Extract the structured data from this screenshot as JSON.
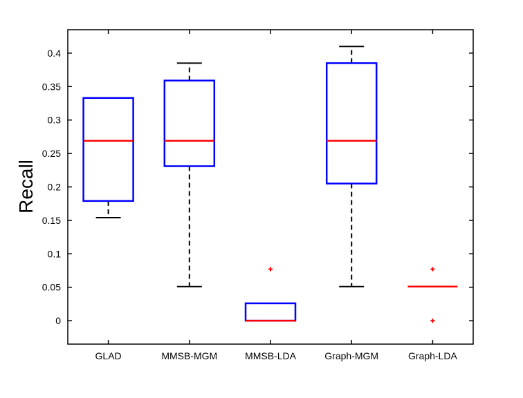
{
  "chart_data": {
    "type": "boxplot",
    "title": "",
    "xlabel": "",
    "ylabel": "Recall",
    "ylim": [
      -0.035,
      0.435
    ],
    "yticks": [
      0,
      0.05,
      0.1,
      0.15,
      0.2,
      0.25,
      0.3,
      0.35,
      0.4
    ],
    "ytick_labels": [
      "0",
      "0.05",
      "0.1",
      "0.15",
      "0.2",
      "0.25",
      "0.3",
      "0.35",
      "0.4"
    ],
    "grid": false,
    "colors": {
      "box": "#0000ff",
      "median": "#ff0000",
      "whisker": "#000000",
      "outlier": "#ff0000",
      "axes": "#000000"
    },
    "categories": [
      "GLAD",
      "MMSB-MGM",
      "MMSB-LDA",
      "Graph-MGM",
      "Graph-LDA"
    ],
    "boxes": [
      {
        "label": "GLAD",
        "whisker_low": 0.154,
        "q1": 0.179,
        "median": 0.269,
        "q3": 0.333,
        "whisker_high": 0.333,
        "outliers": []
      },
      {
        "label": "MMSB-MGM",
        "whisker_low": 0.051,
        "q1": 0.231,
        "median": 0.269,
        "q3": 0.359,
        "whisker_high": 0.385,
        "outliers": []
      },
      {
        "label": "MMSB-LDA",
        "whisker_low": 0,
        "q1": 0,
        "median": 0,
        "q3": 0.026,
        "whisker_high": 0.026,
        "outliers": [
          0.077
        ]
      },
      {
        "label": "Graph-MGM",
        "whisker_low": 0.051,
        "q1": 0.205,
        "median": 0.269,
        "q3": 0.385,
        "whisker_high": 0.41,
        "outliers": []
      },
      {
        "label": "Graph-LDA",
        "whisker_low": 0.051,
        "q1": 0.051,
        "median": 0.051,
        "q3": 0.051,
        "whisker_high": 0.051,
        "outliers": [
          0.077,
          0
        ]
      }
    ]
  }
}
